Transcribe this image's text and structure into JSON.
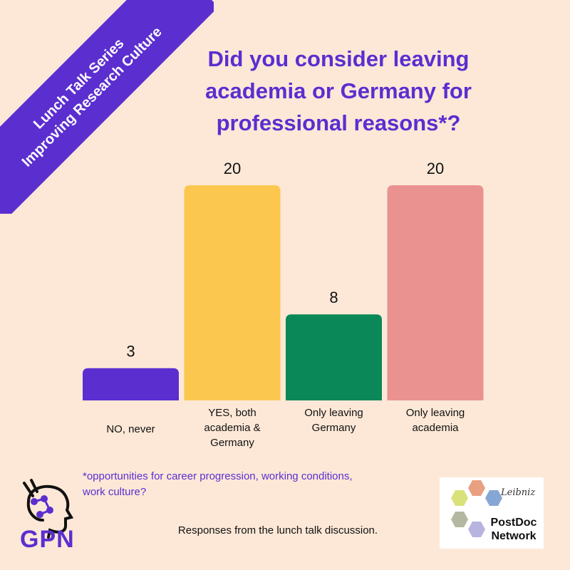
{
  "banner": {
    "line1": "Lunch Talk Series",
    "line2": "Improving Research Culture"
  },
  "title": "Did you consider leaving academia or Germany for professional reasons*?",
  "footnote": "*opportunities for career progression, working conditions, work culture?",
  "caption": "Responses from the lunch talk discussion.",
  "logos": {
    "gpn_text": "GPN",
    "leibniz_script": "Leibniz",
    "postdoc_line1": "PostDoc",
    "postdoc_line2": "Network"
  },
  "colors": {
    "background": "#fde8d7",
    "accent": "#5b2ed0",
    "bars": [
      "#5b2ed0",
      "#fcc74f",
      "#0a8857",
      "#ea9290"
    ]
  },
  "chart_data": {
    "type": "bar",
    "categories": [
      [
        "NO, never"
      ],
      [
        "YES, both",
        "academia &",
        "Germany"
      ],
      [
        "Only leaving",
        "Germany"
      ],
      [
        "Only leaving",
        "academia"
      ]
    ],
    "values": [
      3,
      20,
      8,
      20
    ],
    "data_labels": [
      "3",
      "20",
      "8",
      "20"
    ],
    "title": "Did you consider leaving academia or Germany for professional reasons*?",
    "xlabel": "",
    "ylabel": "",
    "ylim": [
      0,
      20
    ],
    "grid": false,
    "legend": "none"
  }
}
